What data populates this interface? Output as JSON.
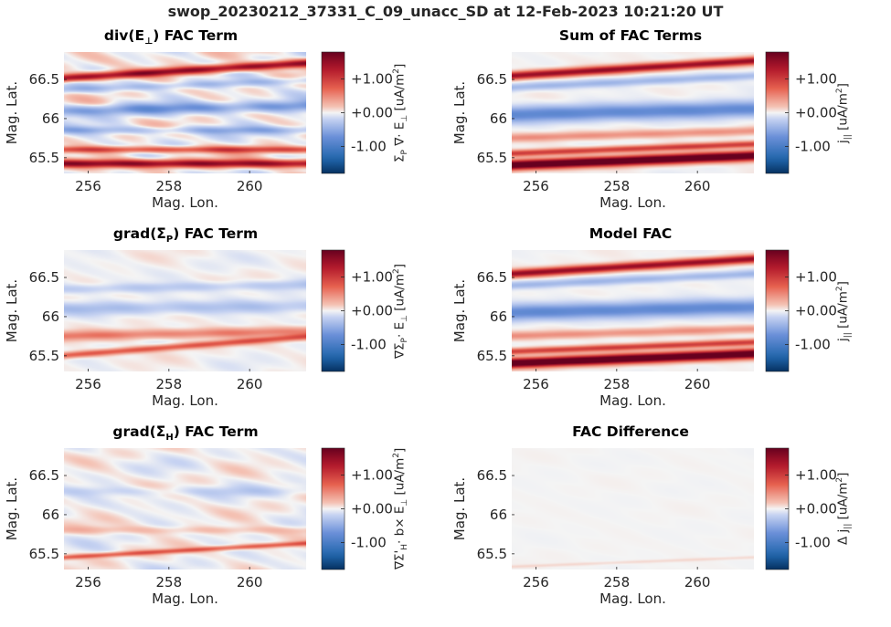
{
  "figure_title": "swop_20230212_37331_C_09_unacc_SD at 12-Feb-2023 10:21:20 UT",
  "colors": {
    "min": "#053061",
    "mid": "#f4f4f4",
    "max": "#67001f",
    "axis": "#262626"
  },
  "chart_data": [
    {
      "id": "div-e-perp",
      "type": "heatmap",
      "title_main": "div(E",
      "title_sub": "⊥",
      "title_tail": ") FAC Term",
      "xlabel": "Mag. Lon.",
      "ylabel": "Mag. Lat.",
      "xlim": [
        255.4,
        261.4
      ],
      "ylim": [
        65.3,
        66.85
      ],
      "xticks": [
        "256",
        "258",
        "260"
      ],
      "yticks": [
        "65.5",
        "66",
        "66.5"
      ],
      "colorbar": {
        "clim": [
          -1.8,
          1.8
        ],
        "ticks": [
          "+1.00",
          "+0.00",
          "-1.00"
        ],
        "label": "Σ_P ∇· E_⊥ [uA/m^2]"
      },
      "bands": [
        {
          "lat": 66.52,
          "slope": 0.032,
          "width": 0.05,
          "amp": 1.55
        },
        {
          "lat": 66.37,
          "slope": 0.02,
          "width": 0.05,
          "amp": -0.35
        },
        {
          "lat": 66.1,
          "slope": 0.01,
          "width": 0.07,
          "amp": -0.6
        },
        {
          "lat": 65.85,
          "slope": 0.0,
          "width": 0.05,
          "amp": -0.4
        },
        {
          "lat": 65.6,
          "slope": 0.0,
          "width": 0.04,
          "amp": 0.9
        },
        {
          "lat": 65.42,
          "slope": 0.0,
          "width": 0.05,
          "amp": 1.5
        }
      ],
      "noise": 0.35
    },
    {
      "id": "sum-fac",
      "type": "heatmap",
      "title_main": "Sum of FAC Terms",
      "title_sub": "",
      "title_tail": "",
      "xlabel": "Mag. Lon.",
      "ylabel": "Mag. Lat.",
      "xlim": [
        255.4,
        261.4
      ],
      "ylim": [
        65.3,
        66.85
      ],
      "xticks": [
        "256",
        "258",
        "260"
      ],
      "yticks": [
        "65.5",
        "66",
        "66.5"
      ],
      "colorbar": {
        "clim": [
          -1.8,
          1.8
        ],
        "ticks": [
          "+1.00",
          "+0.00",
          "-1.00"
        ],
        "label": "j_|| [uA/m^2]"
      },
      "bands": [
        {
          "lat": 66.55,
          "slope": 0.032,
          "width": 0.05,
          "amp": 1.5
        },
        {
          "lat": 66.4,
          "slope": 0.025,
          "width": 0.05,
          "amp": -0.4
        },
        {
          "lat": 66.05,
          "slope": 0.012,
          "width": 0.1,
          "amp": -0.8
        },
        {
          "lat": 65.75,
          "slope": 0.015,
          "width": 0.05,
          "amp": 0.45
        },
        {
          "lat": 65.55,
          "slope": 0.02,
          "width": 0.04,
          "amp": 1.0
        },
        {
          "lat": 65.4,
          "slope": 0.02,
          "width": 0.06,
          "amp": 2.2
        }
      ],
      "noise": 0.06
    },
    {
      "id": "grad-sigma-p",
      "type": "heatmap",
      "title_main": "grad(Σ",
      "title_sub": "P",
      "title_tail": ") FAC Term",
      "xlabel": "Mag. Lon.",
      "ylabel": "Mag. Lat.",
      "xlim": [
        255.4,
        261.4
      ],
      "ylim": [
        65.3,
        66.85
      ],
      "xticks": [
        "256",
        "258",
        "260"
      ],
      "yticks": [
        "65.5",
        "66",
        "66.5"
      ],
      "colorbar": {
        "clim": [
          -1.8,
          1.8
        ],
        "ticks": [
          "+1.00",
          "+0.00",
          "-1.00"
        ],
        "label": "∇Σ_P· E_⊥ [uA/m^2]"
      },
      "bands": [
        {
          "lat": 66.35,
          "slope": 0.01,
          "width": 0.06,
          "amp": -0.25
        },
        {
          "lat": 66.1,
          "slope": 0.005,
          "width": 0.08,
          "amp": -0.3
        },
        {
          "lat": 65.75,
          "slope": 0.01,
          "width": 0.06,
          "amp": 0.55
        },
        {
          "lat": 65.5,
          "slope": 0.04,
          "width": 0.04,
          "amp": 0.8
        }
      ],
      "noise": 0.12
    },
    {
      "id": "model-fac",
      "type": "heatmap",
      "title_main": "Model FAC",
      "title_sub": "",
      "title_tail": "",
      "xlabel": "Mag. Lon.",
      "ylabel": "Mag. Lat.",
      "xlim": [
        255.4,
        261.4
      ],
      "ylim": [
        65.3,
        66.85
      ],
      "xticks": [
        "256",
        "258",
        "260"
      ],
      "yticks": [
        "65.5",
        "66",
        "66.5"
      ],
      "colorbar": {
        "clim": [
          -1.8,
          1.8
        ],
        "ticks": [
          "+1.00",
          "+0.00",
          "-1.00"
        ],
        "label": "j_|| [uA/m^2]"
      },
      "bands": [
        {
          "lat": 66.55,
          "slope": 0.032,
          "width": 0.05,
          "amp": 1.5
        },
        {
          "lat": 66.4,
          "slope": 0.025,
          "width": 0.05,
          "amp": -0.4
        },
        {
          "lat": 66.05,
          "slope": 0.012,
          "width": 0.1,
          "amp": -0.8
        },
        {
          "lat": 65.75,
          "slope": 0.015,
          "width": 0.05,
          "amp": 0.45
        },
        {
          "lat": 65.55,
          "slope": 0.02,
          "width": 0.04,
          "amp": 1.0
        },
        {
          "lat": 65.4,
          "slope": 0.02,
          "width": 0.06,
          "amp": 2.2
        }
      ],
      "noise": 0.05
    },
    {
      "id": "grad-sigma-h",
      "type": "heatmap",
      "title_main": "grad(Σ",
      "title_sub": "H",
      "title_tail": ") FAC Term",
      "xlabel": "Mag. Lon.",
      "ylabel": "Mag. Lat.",
      "xlim": [
        255.4,
        261.4
      ],
      "ylim": [
        65.3,
        66.85
      ],
      "xticks": [
        "256",
        "258",
        "260"
      ],
      "yticks": [
        "65.5",
        "66",
        "66.5"
      ],
      "colorbar": {
        "clim": [
          -1.8,
          1.8
        ],
        "ticks": [
          "+1.00",
          "+0.00",
          "-1.00"
        ],
        "label": "∇Σ'_H· b× E_⊥ [uA/m^2]"
      },
      "bands": [
        {
          "lat": 66.3,
          "slope": 0.0,
          "width": 0.06,
          "amp": -0.15
        },
        {
          "lat": 65.8,
          "slope": 0.0,
          "width": 0.05,
          "amp": 0.2
        },
        {
          "lat": 65.45,
          "slope": 0.03,
          "width": 0.03,
          "amp": 0.75
        }
      ],
      "noise": 0.22
    },
    {
      "id": "fac-difference",
      "type": "heatmap",
      "title_main": "FAC Difference",
      "title_sub": "",
      "title_tail": "",
      "xlabel": "Mag. Lon.",
      "ylabel": "Mag. Lat.",
      "xlim": [
        255.4,
        261.4
      ],
      "ylim": [
        65.3,
        66.85
      ],
      "xticks": [
        "256",
        "258",
        "260"
      ],
      "yticks": [
        "65.5",
        "66",
        "66.5"
      ],
      "colorbar": {
        "clim": [
          -1.8,
          1.8
        ],
        "ticks": [
          "+1.00",
          "+0.00",
          "-1.00"
        ],
        "label": "Δ j_|| [uA/m^2]"
      },
      "bands": [
        {
          "lat": 65.33,
          "slope": 0.02,
          "width": 0.02,
          "amp": 0.1
        }
      ],
      "noise": 0.02
    }
  ]
}
